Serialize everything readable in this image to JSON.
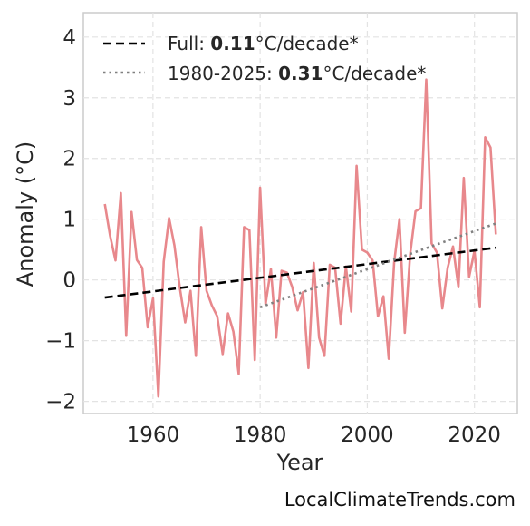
{
  "chart_data": {
    "type": "line",
    "xlabel": "Year",
    "ylabel": "Anomaly (°C)",
    "xlim": [
      1947,
      2028
    ],
    "ylim": [
      -2.2,
      4.4
    ],
    "x_ticks": [
      1960,
      1980,
      2000,
      2020
    ],
    "y_ticks": [
      -2,
      -1,
      0,
      1,
      2,
      3,
      4
    ],
    "y_tick_labels": [
      "−2",
      "−1",
      "0",
      "1",
      "2",
      "3",
      "4"
    ],
    "grid": true,
    "legend_position": "top-left",
    "series": [
      {
        "color": "#e8888c",
        "x": [
          1951,
          1952,
          1953,
          1954,
          1955,
          1956,
          1957,
          1958,
          1959,
          1960,
          1961,
          1962,
          1963,
          1964,
          1965,
          1966,
          1967,
          1968,
          1969,
          1970,
          1971,
          1972,
          1973,
          1974,
          1975,
          1976,
          1977,
          1978,
          1979,
          1980,
          1981,
          1982,
          1983,
          1984,
          1985,
          1986,
          1987,
          1988,
          1989,
          1990,
          1991,
          1992,
          1993,
          1994,
          1995,
          1996,
          1997,
          1998,
          1999,
          2000,
          2001,
          2002,
          2003,
          2004,
          2005,
          2006,
          2007,
          2008,
          2009,
          2010,
          2011,
          2012,
          2013,
          2014,
          2015,
          2016,
          2017,
          2018,
          2019,
          2020,
          2021,
          2022,
          2023,
          2024
        ],
        "values": [
          1.25,
          0.72,
          0.32,
          1.43,
          -0.92,
          1.12,
          0.33,
          0.2,
          -0.78,
          -0.3,
          -1.92,
          0.3,
          1.02,
          0.57,
          -0.12,
          -0.7,
          -0.18,
          -1.25,
          0.87,
          -0.18,
          -0.42,
          -0.6,
          -1.22,
          -0.55,
          -0.85,
          -1.55,
          0.87,
          0.82,
          -1.32,
          1.52,
          -0.4,
          0.18,
          -0.95,
          0.15,
          0.12,
          -0.12,
          -0.5,
          -0.2,
          -1.45,
          0.28,
          -0.95,
          -1.25,
          0.25,
          0.2,
          -0.72,
          0.22,
          -0.52,
          1.88,
          0.5,
          0.45,
          0.32,
          -0.6,
          -0.27,
          -1.3,
          0.28,
          1.0,
          -0.87,
          0.42,
          1.13,
          1.18,
          3.3,
          0.6,
          0.45,
          -0.47,
          0.2,
          0.55,
          -0.12,
          1.68,
          0.05,
          0.48,
          -0.45,
          2.35,
          2.18,
          0.75
        ]
      },
      {
        "name_prefix": "Full: ",
        "name_value": "0.11",
        "name_suffix": "°C/decade*",
        "style": "dashed",
        "color": "#000000",
        "x": [
          1951,
          2024
        ],
        "values": [
          -0.29,
          0.53
        ]
      },
      {
        "name_prefix": "1980-2025: ",
        "name_value": "0.31",
        "name_suffix": "°C/decade*",
        "style": "dotted",
        "color": "#808080",
        "x": [
          1980,
          2024
        ],
        "values": [
          -0.45,
          0.93
        ]
      }
    ]
  },
  "credit": "LocalClimateTrends.com"
}
